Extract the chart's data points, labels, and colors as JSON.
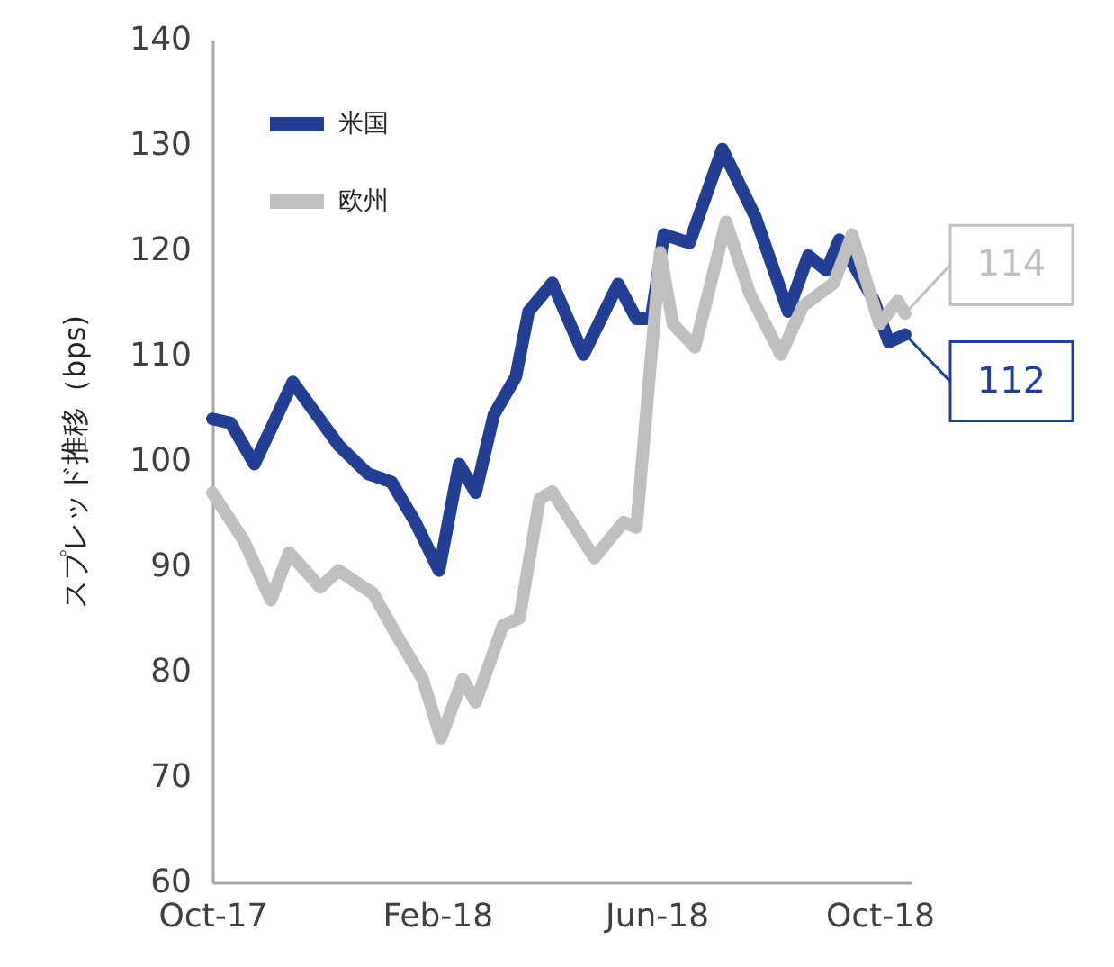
{
  "chart_data": {
    "type": "line",
    "ylabel": "スプレッド推移（bps)",
    "xlim": [
      "2017-10-01",
      "2018-10-18"
    ],
    "ylim": [
      60,
      140
    ],
    "yticks": [
      60,
      70,
      80,
      90,
      100,
      110,
      120,
      130,
      140
    ],
    "xticks": [
      {
        "value": "2017-10-01",
        "label": "Oct-17"
      },
      {
        "value": "2018-02-01",
        "label": "Feb-18"
      },
      {
        "value": "2018-06-01",
        "label": "Jun-18"
      },
      {
        "value": "2018-10-01",
        "label": "Oct-18"
      }
    ],
    "grid": false,
    "legend": "top left",
    "marker": "none",
    "line_style": "solid",
    "series": [
      {
        "name": "米国",
        "color": "#233f94",
        "x": [
          "2017-10-01",
          "2017-10-11",
          "2017-10-24",
          "2017-11-14",
          "2017-12-09",
          "2017-12-25",
          "2018-01-07",
          "2018-01-20",
          "2018-02-02",
          "2018-02-13",
          "2018-02-22",
          "2018-03-04",
          "2018-03-16",
          "2018-03-23",
          "2018-04-05",
          "2018-04-22",
          "2018-05-11",
          "2018-05-21",
          "2018-05-29",
          "2018-06-05",
          "2018-06-19",
          "2018-07-07",
          "2018-07-25",
          "2018-08-12",
          "2018-08-23",
          "2018-09-02",
          "2018-09-09",
          "2018-09-28",
          "2018-10-06",
          "2018-10-15"
        ],
        "values": [
          104,
          103.6,
          99.7,
          107.5,
          101.5,
          98.8,
          98,
          94.2,
          89.6,
          99.7,
          97,
          104.4,
          108,
          114.2,
          116.9,
          110.1,
          116.8,
          113.5,
          113.5,
          121.5,
          120.7,
          129.6,
          123.2,
          114.2,
          119.5,
          118.1,
          121,
          115.2,
          111.3,
          112
        ]
      },
      {
        "name": "欧州",
        "color": "#bfbfbf",
        "x": [
          "2017-10-01",
          "2017-10-18",
          "2017-11-02",
          "2017-11-12",
          "2017-11-29",
          "2017-12-09",
          "2017-12-28",
          "2018-01-10",
          "2018-01-24",
          "2018-02-03",
          "2018-02-15",
          "2018-02-22",
          "2018-03-09",
          "2018-03-18",
          "2018-03-29",
          "2018-04-05",
          "2018-04-28",
          "2018-05-14",
          "2018-05-21",
          "2018-06-03",
          "2018-06-10",
          "2018-06-22",
          "2018-07-09",
          "2018-07-22",
          "2018-08-08",
          "2018-08-20",
          "2018-09-06",
          "2018-09-16",
          "2018-10-01",
          "2018-10-11",
          "2018-10-15"
        ],
        "values": [
          97,
          92.5,
          86.8,
          91.3,
          88,
          89.6,
          87.4,
          83.4,
          79.3,
          73.7,
          79.3,
          77.1,
          84.4,
          85.1,
          96.4,
          97.1,
          90.8,
          94.2,
          93.7,
          119.8,
          113,
          110.8,
          122.7,
          115.9,
          110.1,
          114.7,
          116.9,
          121.5,
          113,
          115.2,
          114
        ]
      }
    ],
    "annotations": [
      {
        "text": "114",
        "x": "2018-10-15",
        "y": 114
      },
      {
        "text": "112",
        "x": "2018-10-15",
        "y": 112
      }
    ]
  }
}
